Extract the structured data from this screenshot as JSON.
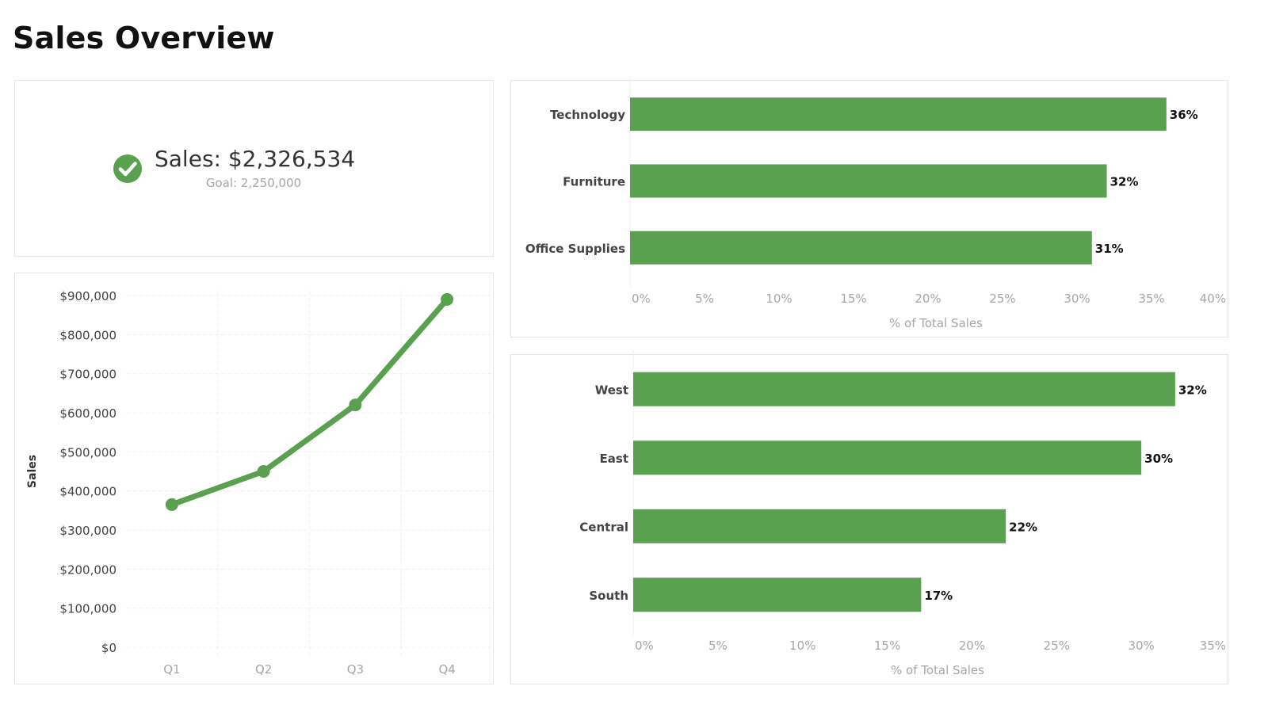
{
  "title": "Sales Overview",
  "kpi": {
    "value_text": "Sales: $2,326,534",
    "goal_text": "Goal: 2,250,000",
    "status_icon": "check-circle-icon",
    "status_color": "#59a14f"
  },
  "colors": {
    "accent": "#59a14f",
    "axis_text": "#a6a6a6",
    "label_text": "#444444",
    "grid": "#efefef"
  },
  "chart_data": [
    {
      "type": "line",
      "title": "",
      "xlabel": "",
      "ylabel": "Sales",
      "categories": [
        "Q1",
        "Q2",
        "Q3",
        "Q4"
      ],
      "values": [
        365000,
        450000,
        620000,
        890000
      ],
      "ylim": [
        0,
        900000
      ],
      "yticks": [
        0,
        100000,
        200000,
        300000,
        400000,
        500000,
        600000,
        700000,
        800000,
        900000
      ],
      "ytick_labels": [
        "$0",
        "$100,000",
        "$200,000",
        "$300,000",
        "$400,000",
        "$500,000",
        "$600,000",
        "$700,000",
        "$800,000",
        "$900,000"
      ],
      "grid": true
    },
    {
      "type": "bar",
      "orientation": "horizontal",
      "categories": [
        "Technology",
        "Furniture",
        "Office Supplies"
      ],
      "values": [
        36,
        32,
        31
      ],
      "value_labels": [
        "36%",
        "32%",
        "31%"
      ],
      "xlabel": "% of Total Sales",
      "xlim": [
        0,
        40
      ],
      "xtick_labels": [
        "0%",
        "5%",
        "10%",
        "15%",
        "20%",
        "25%",
        "30%",
        "35%",
        "40%"
      ]
    },
    {
      "type": "bar",
      "orientation": "horizontal",
      "categories": [
        "West",
        "East",
        "Central",
        "South"
      ],
      "values": [
        32,
        30,
        22,
        17
      ],
      "value_labels": [
        "32%",
        "30%",
        "22%",
        "17%"
      ],
      "xlabel": "% of Total Sales",
      "xlim": [
        0,
        35
      ],
      "xtick_labels": [
        "0%",
        "5%",
        "10%",
        "15%",
        "20%",
        "25%",
        "30%",
        "35%"
      ]
    }
  ]
}
